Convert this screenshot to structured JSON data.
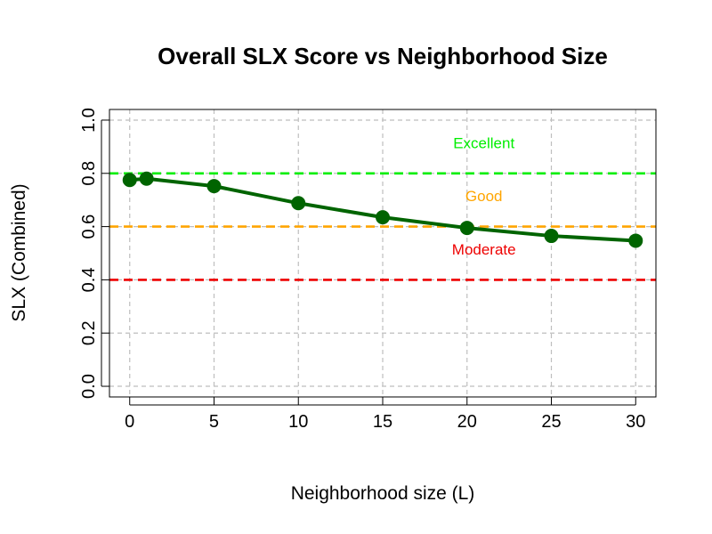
{
  "chart_data": {
    "type": "line",
    "title": "Overall SLX Score vs Neighborhood Size",
    "xlabel": "Neighborhood size (L)",
    "ylabel": "SLX (Combined)",
    "xlim": [
      -1.2,
      31.2
    ],
    "ylim": [
      -0.04,
      1.04
    ],
    "x_ticks": [
      0,
      5,
      10,
      15,
      20,
      25,
      30
    ],
    "y_ticks": [
      0.0,
      0.2,
      0.4,
      0.6,
      0.8,
      1.0
    ],
    "x_tick_labels": [
      "0",
      "5",
      "10",
      "15",
      "20",
      "25",
      "30"
    ],
    "y_tick_labels": [
      "0.0",
      "0.2",
      "0.4",
      "0.6",
      "0.8",
      "1.0"
    ],
    "grid": true,
    "series": [
      {
        "x": [
          0,
          1,
          5,
          10,
          15,
          20,
          25,
          30
        ],
        "y": [
          0.775,
          0.78,
          0.752,
          0.688,
          0.635,
          0.595,
          0.565,
          0.547
        ],
        "color": "#006400"
      }
    ],
    "reference_lines": [
      {
        "y": 0.8,
        "color": "#00ee00"
      },
      {
        "y": 0.6,
        "color": "#ffa500"
      },
      {
        "y": 0.4,
        "color": "#ee0000"
      }
    ],
    "annotations": [
      {
        "text": "Excellent",
        "x": 21,
        "y": 0.895,
        "color": "#00ee00"
      },
      {
        "text": "Good",
        "x": 21,
        "y": 0.695,
        "color": "#ffa500"
      },
      {
        "text": "Moderate",
        "x": 21,
        "y": 0.495,
        "color": "#ee0000"
      }
    ]
  }
}
